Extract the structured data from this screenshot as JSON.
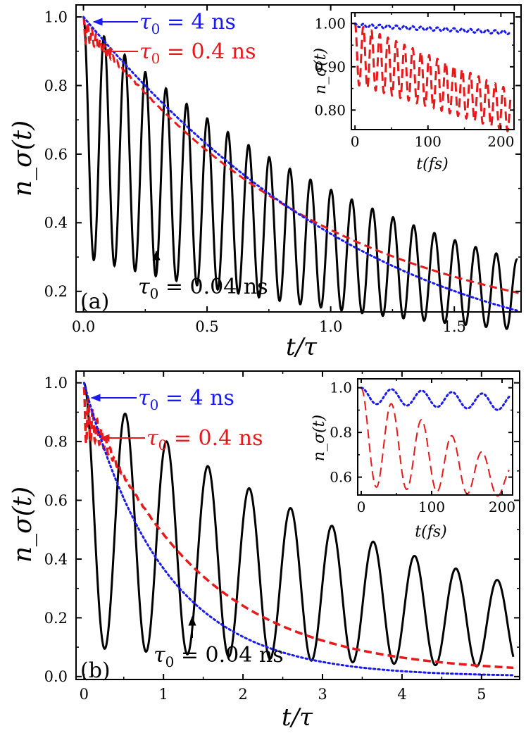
{
  "chart_data": [
    {
      "panel_label": "(a)",
      "type": "line",
      "x_label": "t/τ",
      "y_label": "n_σ(t)",
      "xlim": [
        -0.03,
        1.77
      ],
      "ylim": [
        0.14,
        1.035
      ],
      "x_ticks": [
        0.0,
        0.5,
        1.0,
        1.5
      ],
      "x_tick_labels": [
        "0.0",
        "0.5",
        "1.0",
        "1.5"
      ],
      "y_ticks": [
        0.2,
        0.4,
        0.6,
        0.8,
        1.0
      ],
      "y_tick_labels": [
        "0.2",
        "0.4",
        "0.6",
        "0.8",
        "1.0"
      ],
      "series": [
        {
          "name": "τ0 = 0.04 ns",
          "color": "#000000",
          "style": "solid",
          "decay_rate": 0.7,
          "oscillation_period": 0.0835,
          "first_minimum": 0.31,
          "last_peak": 0.34
        },
        {
          "name": "τ0 = 0.4 ns",
          "color": "#e8191a",
          "style": "dashed",
          "values_at": {
            "0": 1.0,
            "0.3": 0.7,
            "1.0": 0.4,
            "1.75": 0.17
          }
        },
        {
          "name": "τ0 = 4 ns",
          "color": "#1a1aee",
          "style": "dotted",
          "values_at": {
            "0": 1.0,
            "0.3": 0.75,
            "1.0": 0.33,
            "1.75": 0.14
          }
        }
      ],
      "annotations": [
        {
          "text_tau": "τ",
          "text_sub": "0",
          "text_rest": " = 4 ns",
          "color": "#1a1aee"
        },
        {
          "text_tau": "τ",
          "text_sub": "0",
          "text_rest": " = 0.4 ns",
          "color": "#e8191a"
        },
        {
          "text_tau": "τ",
          "text_sub": "0",
          "text_rest": " = 0.04 ns",
          "color": "#000000"
        }
      ],
      "inset": {
        "x_label": "t(fs)",
        "y_label": "n_σ(t)",
        "xlim": [
          -5,
          218
        ],
        "ylim": [
          0.755,
          1.025
        ],
        "x_ticks": [
          0,
          100,
          200
        ],
        "x_tick_labels": [
          "0",
          "100",
          "200"
        ],
        "y_ticks": [
          0.8,
          0.9,
          1.0
        ],
        "y_tick_labels": [
          "0.80",
          "0.90",
          "1.00"
        ],
        "series": [
          {
            "name": "τ0 = 4 ns",
            "color": "#1a1aee",
            "style": "dotted",
            "range": [
              0.98,
              1.0
            ]
          },
          {
            "name": "τ0 = 0.4 ns",
            "color": "#e8191a",
            "style": "dashed",
            "range": [
              0.77,
              1.0
            ]
          }
        ]
      }
    },
    {
      "panel_label": "(b)",
      "type": "line",
      "x_label": "t/τ",
      "y_label": "n_σ(t)",
      "xlim": [
        -0.1,
        5.48
      ],
      "ylim": [
        -0.01,
        1.04
      ],
      "x_ticks": [
        0,
        1,
        2,
        3,
        4,
        5
      ],
      "x_tick_labels": [
        "0",
        "1",
        "2",
        "3",
        "4",
        "5"
      ],
      "y_ticks": [
        0.0,
        0.2,
        0.4,
        0.6,
        0.8,
        1.0
      ],
      "y_tick_labels": [
        "0.0",
        "0.2",
        "0.4",
        "0.6",
        "0.8",
        "1.0"
      ],
      "series": [
        {
          "name": "τ0 = 0.04 ns",
          "color": "#000000",
          "style": "solid",
          "decay_rate": 0.23,
          "oscillation_period": 0.52,
          "first_minimum": 0.14,
          "last_peak": 0.25
        },
        {
          "name": "τ0 = 0.4 ns",
          "color": "#e8191a",
          "style": "dashed",
          "values_at": {
            "0": 1.0,
            "1": 0.45,
            "2": 0.2,
            "5.4": 0.025
          }
        },
        {
          "name": "τ0 = 4 ns",
          "color": "#1a1aee",
          "style": "dotted",
          "values_at": {
            "0": 1.0,
            "1": 0.37,
            "2": 0.14,
            "5.4": 0.01
          }
        }
      ],
      "annotations": [
        {
          "text_tau": "τ",
          "text_sub": "0",
          "text_rest": " = 4 ns",
          "color": "#1a1aee"
        },
        {
          "text_tau": "τ",
          "text_sub": "0",
          "text_rest": " = 0.4 ns",
          "color": "#e8191a"
        },
        {
          "text_tau": "τ",
          "text_sub": "0",
          "text_rest": " = 0.04 ns",
          "color": "#000000"
        }
      ],
      "inset": {
        "x_label": "t(fs)",
        "y_label": "n_σ(t)",
        "xlim": [
          -5,
          215
        ],
        "ylim": [
          0.52,
          1.04
        ],
        "x_ticks": [
          0,
          100,
          200
        ],
        "x_tick_labels": [
          "0",
          "100",
          "200"
        ],
        "y_ticks": [
          0.6,
          0.8,
          1.0
        ],
        "y_tick_labels": [
          "0.6",
          "0.8",
          "1.0"
        ],
        "series": [
          {
            "name": "τ0 = 4 ns",
            "color": "#1a1aee",
            "style": "dotted",
            "range": [
              0.93,
              1.0
            ]
          },
          {
            "name": "τ0 = 0.4 ns",
            "color": "#e8191a",
            "style": "dashed",
            "range": [
              0.54,
              1.0
            ]
          }
        ]
      }
    }
  ]
}
